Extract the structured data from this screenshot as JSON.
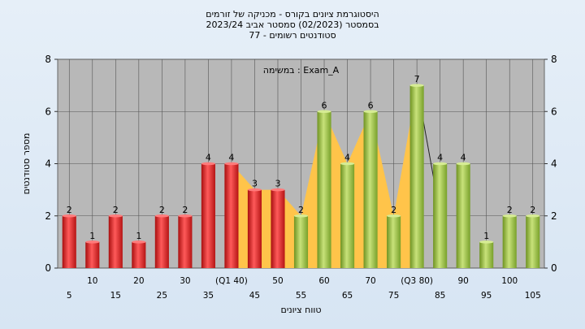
{
  "chart_data": {
    "type": "bar",
    "title": "היסטוגרמת ציונים בקורס - מכניקה של זורמים",
    "subtitle_1": "בסמסטר  (02/2023)  סמסטר אביב 2023/24",
    "subtitle_2": "סטודנטים רשומים - 77",
    "annotation": "במשימה : Exam_A",
    "xlabel": "טווח ציונים",
    "ylabel": "מספר סטודנטים",
    "ylim": [
      0,
      8
    ],
    "yticks": [
      0,
      2,
      4,
      6,
      8
    ],
    "grid": true,
    "categories": [
      5,
      10,
      15,
      20,
      25,
      30,
      35,
      40,
      45,
      50,
      55,
      60,
      65,
      70,
      75,
      80,
      85,
      90,
      95,
      100,
      105
    ],
    "tick_labels": [
      "5",
      "10",
      "15",
      "20",
      "25",
      "30",
      "35",
      "(Q1 40)",
      "45",
      "50",
      "55",
      "60",
      "65",
      "70",
      "75",
      "(Q3 80)",
      "85",
      "90",
      "95",
      "100",
      "105"
    ],
    "values": [
      2,
      1,
      2,
      1,
      2,
      2,
      4,
      4,
      3,
      3,
      2,
      6,
      4,
      6,
      2,
      7,
      4,
      4,
      1,
      2,
      2
    ],
    "colors": {
      "low": "#dd2424",
      "high": "#9cc23e",
      "band": "#ffc44a",
      "plot_bg": "#b8b8b8"
    },
    "red_count": 10,
    "band_range": [
      40,
      80
    ]
  }
}
